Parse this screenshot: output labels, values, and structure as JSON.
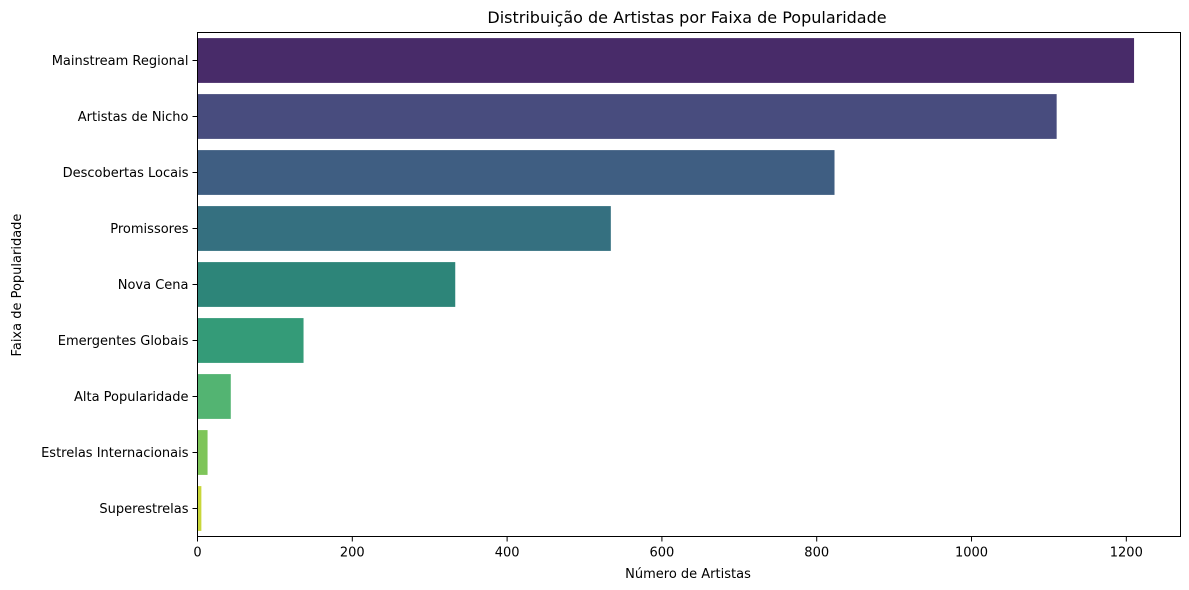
{
  "chart_data": {
    "type": "bar",
    "orientation": "horizontal",
    "title": "Distribuição de Artistas por Faixa de Popularidade",
    "xlabel": "Número de Artistas",
    "ylabel": "Faixa de Popularidade",
    "categories": [
      "Mainstream Regional",
      "Artistas de Nicho",
      "Descobertas Locais",
      "Promissores",
      "Nova Cena",
      "Emergentes Globais",
      "Alta Popularidade",
      "Estrelas Internacionais",
      "Superestrelas"
    ],
    "values": [
      1210,
      1110,
      823,
      534,
      333,
      137,
      43,
      13,
      5
    ],
    "colors": [
      "#482b69",
      "#484c7e",
      "#3f5e82",
      "#357080",
      "#2d8579",
      "#349b78",
      "#53b472",
      "#7ec559",
      "#c9d73a"
    ],
    "xlim": [
      0,
      1270
    ],
    "xticks": [
      0,
      200,
      400,
      600,
      800,
      1000,
      1200
    ],
    "grid": false
  }
}
